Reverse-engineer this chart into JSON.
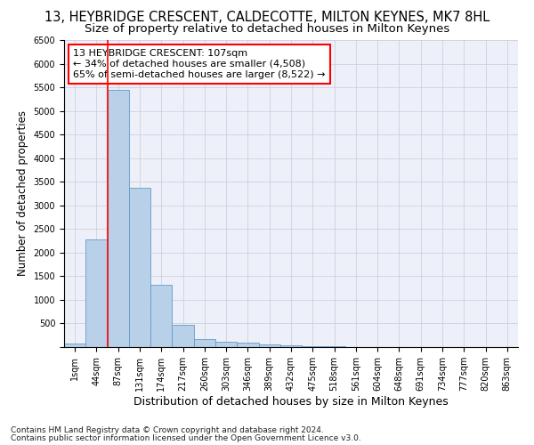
{
  "title": "13, HEYBRIDGE CRESCENT, CALDECOTTE, MILTON KEYNES, MK7 8HL",
  "subtitle": "Size of property relative to detached houses in Milton Keynes",
  "xlabel": "Distribution of detached houses by size in Milton Keynes",
  "ylabel": "Number of detached properties",
  "footnote1": "Contains HM Land Registry data © Crown copyright and database right 2024.",
  "footnote2": "Contains public sector information licensed under the Open Government Licence v3.0.",
  "annotation_line1": "13 HEYBRIDGE CRESCENT: 107sqm",
  "annotation_line2": "← 34% of detached houses are smaller (4,508)",
  "annotation_line3": "65% of semi-detached houses are larger (8,522) →",
  "bar_labels": [
    "1sqm",
    "44sqm",
    "87sqm",
    "131sqm",
    "174sqm",
    "217sqm",
    "260sqm",
    "303sqm",
    "346sqm",
    "389sqm",
    "432sqm",
    "475sqm",
    "518sqm",
    "561sqm",
    "604sqm",
    "648sqm",
    "691sqm",
    "734sqm",
    "777sqm",
    "820sqm",
    "863sqm"
  ],
  "bar_values": [
    75,
    2280,
    5450,
    3380,
    1320,
    480,
    175,
    110,
    85,
    55,
    35,
    20,
    10,
    5,
    3,
    2,
    1,
    1,
    0,
    0,
    0
  ],
  "bar_color": "#b8d0e8",
  "bar_edge_color": "#6699cc",
  "red_line_bar_index": 2,
  "ylim": [
    0,
    6500
  ],
  "yticks": [
    0,
    500,
    1000,
    1500,
    2000,
    2500,
    3000,
    3500,
    4000,
    4500,
    5000,
    5500,
    6000,
    6500
  ],
  "bg_color": "#edf0f8",
  "grid_color": "#c8ccd8",
  "title_fontsize": 10.5,
  "subtitle_fontsize": 9.5,
  "xlabel_fontsize": 9,
  "ylabel_fontsize": 8.5,
  "tick_fontsize": 7,
  "annotation_fontsize": 8,
  "footnote_fontsize": 6.5
}
